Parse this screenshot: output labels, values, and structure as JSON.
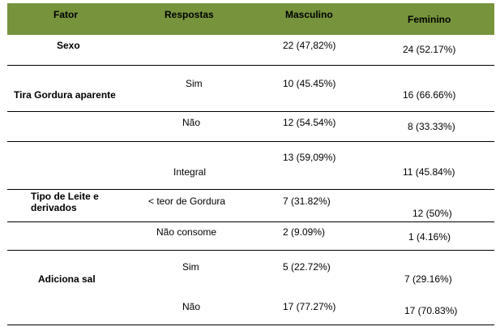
{
  "table": {
    "headers": {
      "fator": "Fator",
      "respostas": "Respostas",
      "masculino": "Masculino",
      "feminino": "Feminino"
    },
    "rows": [
      {
        "fator": "Sexo",
        "resposta": "",
        "masculino": "22 (47,82%)",
        "feminino": "24 (52.17%)"
      },
      {
        "fator": "Tira Gordura aparente",
        "resposta": "Sim",
        "masculino": "10 (45.45%)",
        "feminino": "16 (66.66%)"
      },
      {
        "fator": "",
        "resposta": "Não",
        "masculino": "12 (54.54%)",
        "feminino": "8 (33.33%)"
      },
      {
        "fator": "",
        "resposta": "Integral",
        "masculino": "13 (59,09%)",
        "feminino": "11 (45.84%)"
      },
      {
        "fator": "Tipo de Leite e derivados",
        "resposta": "< teor de Gordura",
        "masculino": "7 (31.82%)",
        "feminino": "12 (50%)"
      },
      {
        "fator": "",
        "resposta": "Não consome",
        "masculino": "2 (9.09%)",
        "feminino": "1 (4.16%)"
      },
      {
        "fator": "Adiciona sal",
        "resposta": "Sim",
        "masculino": "5 (22.72%)",
        "feminino": "7 (29.16%)"
      },
      {
        "fator": "",
        "resposta": "Não",
        "masculino": "17 (77.27%)",
        "feminino": "17 (70.83%)"
      }
    ],
    "tipo_leite_line1": "Tipo de Leite e",
    "tipo_leite_line2": "derivados",
    "header_color": "#77933c"
  }
}
